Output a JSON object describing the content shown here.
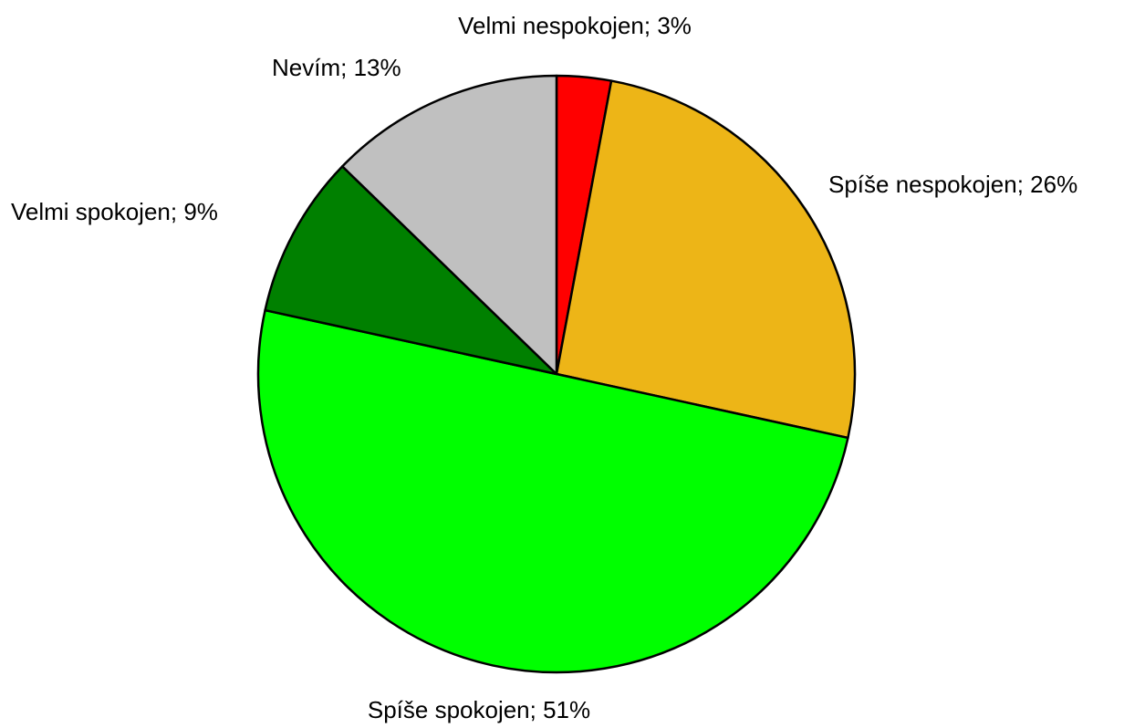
{
  "chart_data": {
    "type": "pie",
    "values": [
      3,
      26,
      51,
      9,
      13
    ],
    "value_labels": [
      "Velmi nespokojen; 3%",
      "Spíše nespokojen; 26%",
      "Spíše spokojen; 51%",
      "Velmi spokojen; 9%",
      "Nevím; 13%"
    ],
    "colors": [
      "#ff0000",
      "#edb517",
      "#00ff00",
      "#008000",
      "#c0c0c0"
    ]
  }
}
